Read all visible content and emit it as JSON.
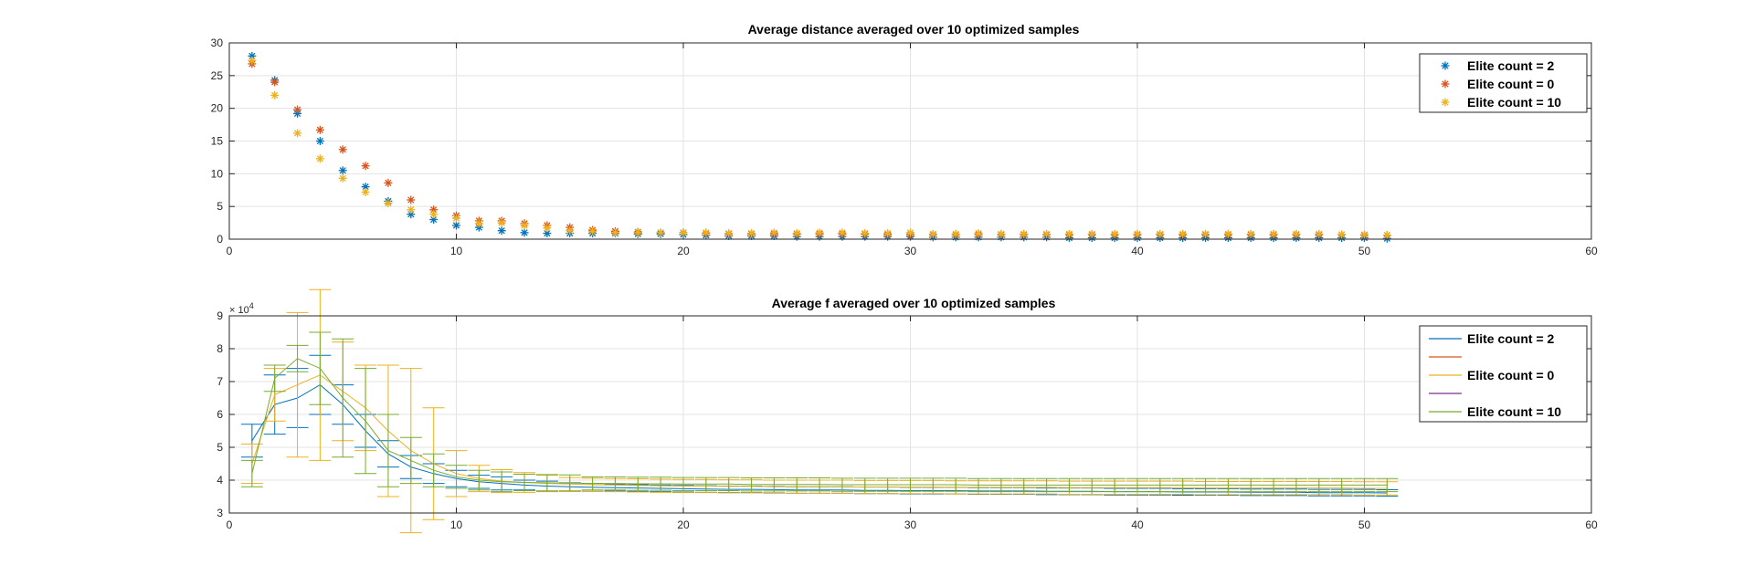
{
  "figure": {
    "background": "#ffffff",
    "colors": {
      "blue": "#0072BD",
      "orange": "#D95319",
      "yellow": "#EDB120",
      "purple": "#7E2F8E",
      "green": "#77AC30"
    }
  },
  "chart_data": [
    {
      "type": "scatter",
      "title": "Average distance averaged over 10 optimized samples",
      "xlabel": "",
      "ylabel": "",
      "xlim": [
        0,
        60
      ],
      "ylim": [
        0,
        30
      ],
      "xticks": [
        0,
        10,
        20,
        30,
        40,
        50,
        60
      ],
      "yticks": [
        0,
        5,
        10,
        15,
        20,
        25,
        30
      ],
      "grid": true,
      "legend_position": "top-right",
      "marker": "asterisk",
      "x": [
        1,
        2,
        3,
        4,
        5,
        6,
        7,
        8,
        9,
        10,
        11,
        12,
        13,
        14,
        15,
        16,
        17,
        18,
        19,
        20,
        21,
        22,
        23,
        24,
        25,
        26,
        27,
        28,
        29,
        30,
        31,
        32,
        33,
        34,
        35,
        36,
        37,
        38,
        39,
        40,
        41,
        42,
        43,
        44,
        45,
        46,
        47,
        48,
        49,
        50,
        51
      ],
      "series": [
        {
          "name": "Elite count = 2",
          "color": "#0072BD",
          "values": [
            28,
            24.3,
            19.2,
            15,
            10.5,
            8,
            5.8,
            3.8,
            3,
            2.1,
            1.8,
            1.3,
            1,
            0.9,
            0.9,
            0.9,
            0.9,
            0.8,
            0.8,
            0.7,
            0.6,
            0.5,
            0.5,
            0.5,
            0.4,
            0.4,
            0.4,
            0.4,
            0.4,
            0.4,
            0.3,
            0.3,
            0.3,
            0.3,
            0.3,
            0.3,
            0.2,
            0.2,
            0.2,
            0.2,
            0.2,
            0.2,
            0.2,
            0.2,
            0.2,
            0.2,
            0.2,
            0.2,
            0.2,
            0.2,
            0.1
          ]
        },
        {
          "name": "Elite count = 0",
          "color": "#D95319",
          "values": [
            26.8,
            24,
            19.8,
            16.7,
            13.7,
            11.2,
            8.6,
            6,
            4.5,
            3.6,
            2.8,
            2.8,
            2.4,
            2.1,
            1.8,
            1.4,
            1.2,
            1.1,
            1,
            1,
            0.9,
            0.8,
            0.8,
            0.8,
            0.8,
            0.8,
            0.8,
            0.8,
            0.7,
            0.7,
            0.7,
            0.7,
            0.7,
            0.7,
            0.7,
            0.7,
            0.7,
            0.7,
            0.7,
            0.7,
            0.7,
            0.7,
            0.7,
            0.7,
            0.7,
            0.7,
            0.7,
            0.7,
            0.7,
            0.6,
            0.6
          ]
        },
        {
          "name": "Elite count = 10",
          "color": "#EDB120",
          "values": [
            27.3,
            22,
            16.2,
            12.3,
            9.3,
            7.2,
            5.5,
            4.5,
            3.8,
            3.2,
            2.4,
            2.5,
            2.1,
            1.7,
            1.3,
            1.2,
            1,
            1,
            1,
            1,
            1,
            0.9,
            0.9,
            1,
            0.9,
            1,
            1,
            0.9,
            0.9,
            1,
            0.8,
            0.8,
            0.9,
            0.8,
            0.8,
            0.8,
            0.8,
            0.8,
            0.8,
            0.8,
            0.8,
            0.8,
            0.8,
            0.8,
            0.8,
            0.8,
            0.8,
            0.8,
            0.7,
            0.7,
            0.6
          ]
        }
      ]
    },
    {
      "type": "line",
      "title": "Average f averaged over 10 optimized samples",
      "xlabel": "",
      "ylabel": "",
      "xlim": [
        0,
        60
      ],
      "ylim": [
        3,
        9
      ],
      "y_scale_label": "× 10",
      "y_scale_exponent": "4",
      "xticks": [
        0,
        10,
        20,
        30,
        40,
        50,
        60
      ],
      "yticks": [
        3,
        4,
        5,
        6,
        7,
        8,
        9
      ],
      "grid": true,
      "legend_position": "top-right",
      "error_bars": true,
      "x": [
        1,
        2,
        3,
        4,
        5,
        6,
        7,
        8,
        9,
        10,
        11,
        12,
        13,
        14,
        15,
        16,
        17,
        18,
        19,
        20,
        21,
        22,
        23,
        24,
        25,
        26,
        27,
        28,
        29,
        30,
        31,
        32,
        33,
        34,
        35,
        36,
        37,
        38,
        39,
        40,
        41,
        42,
        43,
        44,
        45,
        46,
        47,
        48,
        49,
        50,
        51
      ],
      "legend_entries": [
        {
          "label": "Elite count = 2",
          "color": "#0072BD"
        },
        {
          "label": "",
          "color": "#D95319"
        },
        {
          "label": "Elite count = 0",
          "color": "#EDB120"
        },
        {
          "label": "",
          "color": "#7E2F8E"
        },
        {
          "label": "Elite count = 10",
          "color": "#77AC30"
        }
      ],
      "series": [
        {
          "color": "#0072BD",
          "values": [
            5.2,
            6.3,
            6.5,
            6.9,
            6.3,
            5.5,
            4.8,
            4.4,
            4.2,
            4.05,
            3.95,
            3.9,
            3.85,
            3.82,
            3.8,
            3.78,
            3.77,
            3.76,
            3.75,
            3.74,
            3.73,
            3.72,
            3.72,
            3.71,
            3.7,
            3.7,
            3.7,
            3.69,
            3.69,
            3.68,
            3.68,
            3.68,
            3.67,
            3.67,
            3.67,
            3.66,
            3.66,
            3.66,
            3.65,
            3.65,
            3.65,
            3.64,
            3.64,
            3.64,
            3.63,
            3.63,
            3.63,
            3.62,
            3.62,
            3.62,
            3.61
          ],
          "err": [
            0.5,
            0.9,
            0.9,
            0.9,
            0.6,
            0.5,
            0.4,
            0.35,
            0.3,
            0.25,
            0.2,
            0.2,
            0.15,
            0.15,
            0.12,
            0.12,
            0.1,
            0.1,
            0.1,
            0.1,
            0.1,
            0.1,
            0.1,
            0.1,
            0.1,
            0.1,
            0.1,
            0.1,
            0.1,
            0.1,
            0.1,
            0.1,
            0.1,
            0.1,
            0.1,
            0.1,
            0.1,
            0.1,
            0.1,
            0.1,
            0.1,
            0.1,
            0.1,
            0.1,
            0.1,
            0.1,
            0.1,
            0.1,
            0.1,
            0.1,
            0.1
          ]
        },
        {
          "color": "#EDB120",
          "values": [
            4.5,
            6.6,
            6.9,
            7.2,
            6.7,
            6.2,
            5.5,
            4.9,
            4.5,
            4.2,
            4.05,
            3.97,
            3.93,
            3.9,
            3.88,
            3.86,
            3.85,
            3.84,
            3.83,
            3.82,
            3.82,
            3.81,
            3.81,
            3.8,
            3.8,
            3.8,
            3.8,
            3.79,
            3.79,
            3.79,
            3.79,
            3.78,
            3.78,
            3.78,
            3.78,
            3.78,
            3.77,
            3.77,
            3.77,
            3.77,
            3.77,
            3.77,
            3.76,
            3.76,
            3.76,
            3.76,
            3.76,
            3.76,
            3.76,
            3.75,
            3.75
          ],
          "err": [
            0.6,
            0.8,
            2.2,
            2.6,
            1.5,
            1.3,
            2.0,
            2.5,
            1.7,
            0.7,
            0.4,
            0.35,
            0.3,
            0.25,
            0.2,
            0.2,
            0.2,
            0.2,
            0.2,
            0.2,
            0.2,
            0.2,
            0.2,
            0.2,
            0.2,
            0.2,
            0.2,
            0.2,
            0.2,
            0.2,
            0.2,
            0.2,
            0.2,
            0.2,
            0.2,
            0.2,
            0.2,
            0.2,
            0.2,
            0.2,
            0.2,
            0.2,
            0.2,
            0.2,
            0.2,
            0.2,
            0.2,
            0.2,
            0.2,
            0.2,
            0.2
          ]
        },
        {
          "color": "#77AC30",
          "values": [
            4.2,
            7.1,
            7.7,
            7.4,
            6.5,
            5.8,
            4.9,
            4.6,
            4.3,
            4.1,
            4.0,
            3.95,
            3.93,
            3.92,
            3.91,
            3.9,
            3.9,
            3.89,
            3.89,
            3.88,
            3.88,
            3.88,
            3.87,
            3.87,
            3.87,
            3.87,
            3.86,
            3.86,
            3.86,
            3.86,
            3.86,
            3.86,
            3.85,
            3.85,
            3.85,
            3.85,
            3.85,
            3.85,
            3.85,
            3.85,
            3.85,
            3.85,
            3.85,
            3.85,
            3.85,
            3.85,
            3.85,
            3.85,
            3.85,
            3.85,
            3.85
          ],
          "err": [
            0.4,
            0.4,
            0.4,
            1.1,
            1.8,
            1.6,
            1.1,
            0.7,
            0.5,
            0.35,
            0.3,
            0.3,
            0.25,
            0.25,
            0.25,
            0.2,
            0.2,
            0.2,
            0.2,
            0.2,
            0.2,
            0.2,
            0.2,
            0.2,
            0.2,
            0.2,
            0.2,
            0.2,
            0.2,
            0.2,
            0.2,
            0.2,
            0.2,
            0.2,
            0.2,
            0.2,
            0.2,
            0.2,
            0.2,
            0.2,
            0.2,
            0.2,
            0.2,
            0.2,
            0.2,
            0.2,
            0.2,
            0.2,
            0.2,
            0.2,
            0.2
          ]
        }
      ]
    }
  ]
}
